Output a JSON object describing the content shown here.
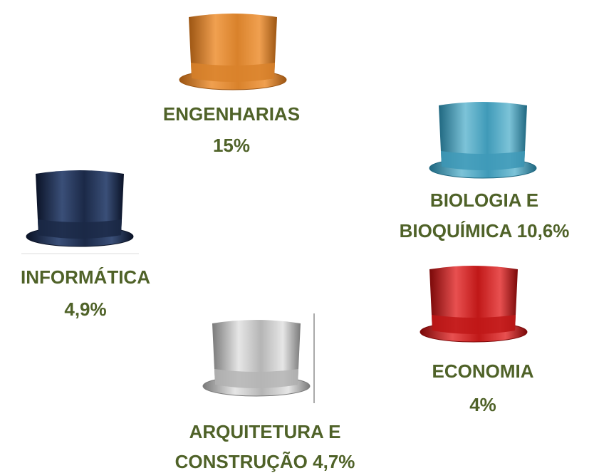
{
  "items": [
    {
      "lines": [
        "ENGENHARIAS",
        "15%"
      ]
    },
    {
      "lines": [
        "BIOLOGIA E",
        "BIOQUÍMICA 10,6%"
      ]
    },
    {
      "lines": [
        "INFORMÁTICA",
        "4,9%"
      ]
    },
    {
      "lines": [
        "ECONOMIA",
        "4%"
      ]
    },
    {
      "lines": [
        "ARQUITETURA  E",
        "CONSTRUÇÃO 4,7%"
      ]
    }
  ]
}
